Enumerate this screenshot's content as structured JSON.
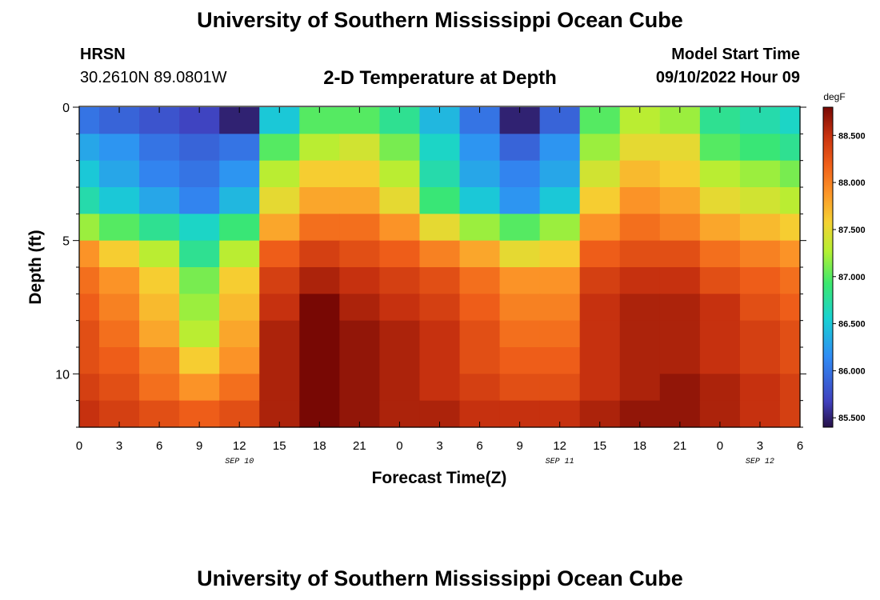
{
  "header": {
    "title": "University of Southern Mississippi Ocean Cube",
    "station_id": "HRSN",
    "station_coords": "30.2610N  89.0801W",
    "subtitle": "2-D Temperature at Depth",
    "model_start_label": "Model Start Time",
    "model_start_value": "09/10/2022 Hour 09"
  },
  "footer": {
    "title": "University of Southern Mississippi Ocean Cube"
  },
  "chart_data": {
    "type": "heatmap",
    "title": "2-D Temperature at Depth",
    "xlabel": "Forecast Time(Z)",
    "ylabel": "Depth (ft)",
    "x_tick_labels": [
      "0",
      "3",
      "6",
      "9",
      "12",
      "15",
      "18",
      "21",
      "0",
      "3",
      "6",
      "9",
      "12",
      "15",
      "18",
      "21",
      "0",
      "3",
      "6"
    ],
    "x_hour_offsets": [
      0,
      3,
      6,
      9,
      12,
      15,
      18,
      21,
      24,
      27,
      30,
      33,
      36,
      39,
      42,
      45,
      48,
      51,
      54
    ],
    "x_range_hours": [
      0,
      54
    ],
    "date_labels": [
      {
        "text": "SEP 10",
        "hour": 12
      },
      {
        "text": "SEP 11",
        "hour": 36
      },
      {
        "text": "SEP 12",
        "hour": 51
      }
    ],
    "y_tick_labels": [
      "0",
      "5",
      "10"
    ],
    "y_tick_values": [
      0,
      5,
      10
    ],
    "ylim_ft": [
      0,
      12
    ],
    "y_inverted": true,
    "depth_levels_ft": [
      0.5,
      1.5,
      2.5,
      3.5,
      4.5,
      5.5,
      6.5,
      7.5,
      8.5,
      9.5,
      10.5,
      11.5
    ],
    "time_hours": [
      0,
      3,
      6,
      9,
      12,
      15,
      18,
      21,
      24,
      27,
      30,
      33,
      36,
      39,
      42,
      45,
      48,
      51,
      54
    ],
    "values_degF": [
      [
        86.0,
        85.9,
        85.8,
        85.7,
        85.5,
        86.5,
        87.0,
        87.0,
        86.8,
        86.4,
        86.0,
        85.5,
        85.9,
        87.0,
        87.3,
        87.2,
        86.8,
        86.7,
        86.6
      ],
      [
        86.3,
        86.2,
        86.0,
        85.9,
        86.0,
        87.0,
        87.3,
        87.4,
        87.1,
        86.6,
        86.2,
        85.9,
        86.2,
        87.2,
        87.5,
        87.5,
        87.0,
        86.9,
        86.8
      ],
      [
        86.5,
        86.3,
        86.1,
        86.0,
        86.2,
        87.3,
        87.6,
        87.6,
        87.3,
        86.7,
        86.3,
        86.1,
        86.3,
        87.4,
        87.7,
        87.6,
        87.3,
        87.2,
        87.1
      ],
      [
        86.7,
        86.5,
        86.3,
        86.1,
        86.4,
        87.5,
        87.8,
        87.8,
        87.5,
        86.9,
        86.5,
        86.2,
        86.5,
        87.6,
        87.9,
        87.8,
        87.5,
        87.4,
        87.3
      ],
      [
        87.2,
        87.0,
        86.8,
        86.6,
        86.9,
        87.8,
        88.1,
        88.1,
        87.9,
        87.5,
        87.2,
        87.0,
        87.2,
        87.9,
        88.1,
        88.0,
        87.8,
        87.7,
        87.6
      ],
      [
        87.9,
        87.6,
        87.3,
        86.8,
        87.3,
        88.2,
        88.4,
        88.3,
        88.2,
        88.0,
        87.8,
        87.5,
        87.6,
        88.2,
        88.3,
        88.3,
        88.1,
        88.0,
        87.9
      ],
      [
        88.1,
        87.9,
        87.6,
        87.1,
        87.6,
        88.4,
        88.6,
        88.5,
        88.4,
        88.3,
        88.1,
        87.9,
        87.9,
        88.4,
        88.5,
        88.5,
        88.3,
        88.2,
        88.1
      ],
      [
        88.2,
        88.0,
        87.7,
        87.2,
        87.7,
        88.5,
        88.8,
        88.6,
        88.5,
        88.4,
        88.2,
        88.0,
        88.0,
        88.5,
        88.6,
        88.6,
        88.5,
        88.3,
        88.2
      ],
      [
        88.3,
        88.1,
        87.8,
        87.3,
        87.8,
        88.6,
        88.8,
        88.7,
        88.6,
        88.5,
        88.3,
        88.1,
        88.1,
        88.5,
        88.6,
        88.6,
        88.5,
        88.4,
        88.3
      ],
      [
        88.3,
        88.2,
        88.0,
        87.6,
        87.9,
        88.6,
        88.8,
        88.7,
        88.6,
        88.5,
        88.3,
        88.2,
        88.2,
        88.5,
        88.6,
        88.6,
        88.5,
        88.4,
        88.3
      ],
      [
        88.4,
        88.3,
        88.1,
        87.9,
        88.1,
        88.6,
        88.8,
        88.7,
        88.6,
        88.5,
        88.4,
        88.3,
        88.3,
        88.5,
        88.6,
        88.7,
        88.6,
        88.5,
        88.4
      ],
      [
        88.5,
        88.4,
        88.3,
        88.2,
        88.3,
        88.6,
        88.8,
        88.7,
        88.6,
        88.6,
        88.5,
        88.5,
        88.5,
        88.6,
        88.7,
        88.7,
        88.6,
        88.5,
        88.4
      ]
    ],
    "colorbar": {
      "unit": "degF",
      "min": 85.4,
      "max": 88.8,
      "tick_labels": [
        "85.500",
        "86.000",
        "86.500",
        "87.000",
        "87.500",
        "88.000",
        "88.500"
      ],
      "tick_values": [
        85.5,
        86.0,
        86.5,
        87.0,
        87.5,
        88.0,
        88.5
      ]
    }
  }
}
